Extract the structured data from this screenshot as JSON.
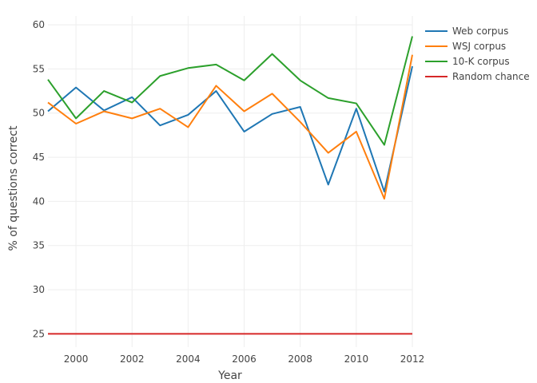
{
  "chart_data": {
    "type": "line",
    "title": "",
    "xlabel": "Year",
    "ylabel": "% of questions correct",
    "xlim": [
      1999,
      2012
    ],
    "ylim": [
      23.5,
      61
    ],
    "x_ticks": [
      2000,
      2002,
      2004,
      2006,
      2008,
      2010,
      2012
    ],
    "y_ticks": [
      25,
      30,
      35,
      40,
      45,
      50,
      55,
      60
    ],
    "grid": true,
    "legend_position": "top-right",
    "x": [
      1999,
      2000,
      2001,
      2002,
      2003,
      2004,
      2005,
      2006,
      2007,
      2008,
      2009,
      2010,
      2011,
      2012
    ],
    "series": [
      {
        "name": "Web corpus",
        "color": "#1f77b4",
        "values": [
          50.2,
          52.9,
          50.3,
          51.8,
          48.6,
          49.8,
          52.5,
          47.9,
          49.9,
          50.7,
          41.9,
          50.5,
          41.1,
          55.3
        ]
      },
      {
        "name": "WSJ corpus",
        "color": "#ff7f0e",
        "values": [
          51.2,
          48.8,
          50.2,
          49.4,
          50.5,
          48.4,
          53.1,
          50.2,
          52.2,
          49.0,
          45.5,
          47.9,
          40.3,
          56.6
        ]
      },
      {
        "name": "10-K corpus",
        "color": "#2ca02c",
        "values": [
          53.8,
          49.4,
          52.5,
          51.2,
          54.2,
          55.1,
          55.5,
          53.7,
          56.7,
          53.7,
          51.7,
          51.1,
          46.4,
          58.7
        ]
      },
      {
        "name": "Random chance",
        "color": "#d62728",
        "values": [
          25,
          25,
          25,
          25,
          25,
          25,
          25,
          25,
          25,
          25,
          25,
          25,
          25,
          25
        ]
      }
    ]
  }
}
